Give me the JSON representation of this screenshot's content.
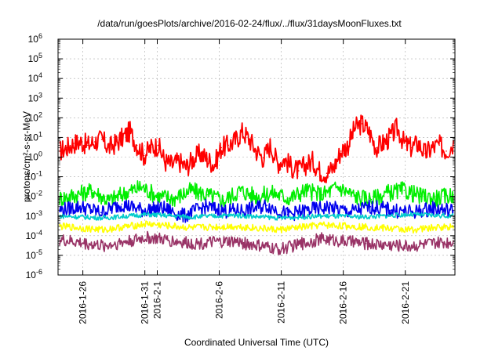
{
  "chart_data": {
    "type": "line",
    "title": "/data/run/goesPlots/archive/2016-02-24/flux/../flux/31daysMoonFluxes.txt",
    "xlabel": "Coordinated Universal Time (UTC)",
    "ylabel": "protons/cm²-s-sr-MeV",
    "y_scale": "log",
    "ylim_exponent": [
      -6,
      6
    ],
    "y_ticks": [
      {
        "base": "10",
        "exp": "-6"
      },
      {
        "base": "10",
        "exp": "-5"
      },
      {
        "base": "10",
        "exp": "-4"
      },
      {
        "base": "10",
        "exp": "-3"
      },
      {
        "base": "10",
        "exp": "-2"
      },
      {
        "base": "10",
        "exp": "-1"
      },
      {
        "base": "10",
        "exp": "0"
      },
      {
        "base": "10",
        "exp": "1"
      },
      {
        "base": "10",
        "exp": "2"
      },
      {
        "base": "10",
        "exp": "3"
      },
      {
        "base": "10",
        "exp": "4"
      },
      {
        "base": "10",
        "exp": "5"
      },
      {
        "base": "10",
        "exp": "6"
      }
    ],
    "x_tick_labels": [
      "2016-1-26",
      "2016-1-31",
      "2016-2-1",
      "2016-2-6",
      "2016-2-11",
      "2016-2-16",
      "2016-2-21"
    ],
    "xlim": [
      "2016-01-24",
      "2016-02-25"
    ],
    "grid": true,
    "series": [
      {
        "color": "#ff0000",
        "values": [
          2,
          3,
          5,
          6,
          4,
          6,
          8,
          3,
          5,
          10,
          20,
          4,
          1.2,
          3,
          4,
          0.6,
          0.4,
          0.6,
          0.3,
          0.8,
          1.5,
          0.8,
          0.4,
          3,
          4,
          7,
          20,
          8,
          2,
          0.9,
          4,
          0.5,
          0.8,
          0.3,
          0.2,
          0.4,
          0.6,
          0.2,
          0.15,
          0.3,
          2,
          4,
          30,
          50,
          20,
          3,
          5,
          10,
          30,
          5,
          3,
          5,
          1.5,
          3,
          4,
          2,
          5
        ]
      },
      {
        "color": "#00ee00",
        "values": [
          0.008,
          0.012,
          0.02,
          0.006,
          0.015,
          0.03,
          0.01,
          0.008,
          0.02,
          0.012,
          0.006,
          0.02,
          0.01,
          0.015,
          0.008,
          0.02,
          0.012,
          0.03,
          0.01,
          0.007,
          0.015,
          0.02,
          0.01,
          0.008,
          0.012
        ]
      },
      {
        "color": "#0000ee",
        "values": [
          0.002,
          0.003,
          0.0015,
          0.004,
          0.002,
          0.0025,
          0.001,
          0.003,
          0.0018,
          0.002,
          0.0035,
          0.0012,
          0.002,
          0.0028,
          0.0016,
          0.003,
          0.002,
          0.0015,
          0.0025,
          0.0018
        ]
      },
      {
        "color": "#00cccc",
        "values": [
          0.001,
          0.0008,
          0.0012,
          0.0009,
          0.0011,
          0.0008,
          0.001,
          0.0009,
          0.0012,
          0.001
        ]
      },
      {
        "color": "#ffff00",
        "values": [
          0.0003,
          0.0002,
          0.0004,
          0.00025,
          0.0003,
          0.0002,
          0.00035,
          0.00028,
          0.0002,
          0.0003
        ]
      },
      {
        "color": "#993366",
        "values": [
          6e-05,
          3e-05,
          8e-05,
          4e-05,
          5e-05,
          2e-05,
          7e-05,
          4e-05,
          3e-05,
          5e-05
        ]
      }
    ]
  }
}
